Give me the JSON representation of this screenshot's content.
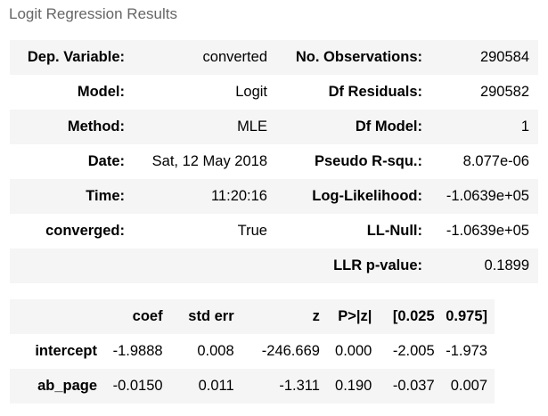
{
  "caption": "Logit Regression Results",
  "summary_rows": [
    {
      "l1": "Dep. Variable:",
      "v1": "converted",
      "l2": "No. Observations:",
      "v2": "290584"
    },
    {
      "l1": "Model:",
      "v1": "Logit",
      "l2": "Df Residuals:",
      "v2": "290582"
    },
    {
      "l1": "Method:",
      "v1": "MLE",
      "l2": "Df Model:",
      "v2": "1"
    },
    {
      "l1": "Date:",
      "v1": "Sat, 12 May 2018",
      "l2": "Pseudo R-squ.:",
      "v2": "8.077e-06"
    },
    {
      "l1": "Time:",
      "v1": "11:20:16",
      "l2": "Log-Likelihood:",
      "v2": "-1.0639e+05"
    },
    {
      "l1": "converged:",
      "v1": "True",
      "l2": "LL-Null:",
      "v2": "-1.0639e+05"
    },
    {
      "l1": "",
      "v1": "",
      "l2": "LLR p-value:",
      "v2": "0.1899"
    }
  ],
  "coef_table": {
    "headers": [
      "",
      "coef",
      "std err",
      "z",
      "P>|z|",
      "[0.025",
      "0.975]"
    ],
    "rows": [
      [
        "intercept",
        "-1.9888",
        "0.008",
        "-246.669",
        "0.000",
        "-2.005",
        "-1.973"
      ],
      [
        "ab_page",
        "-0.0150",
        "0.011",
        "-1.311",
        "0.190",
        "-0.037",
        "0.007"
      ]
    ]
  }
}
